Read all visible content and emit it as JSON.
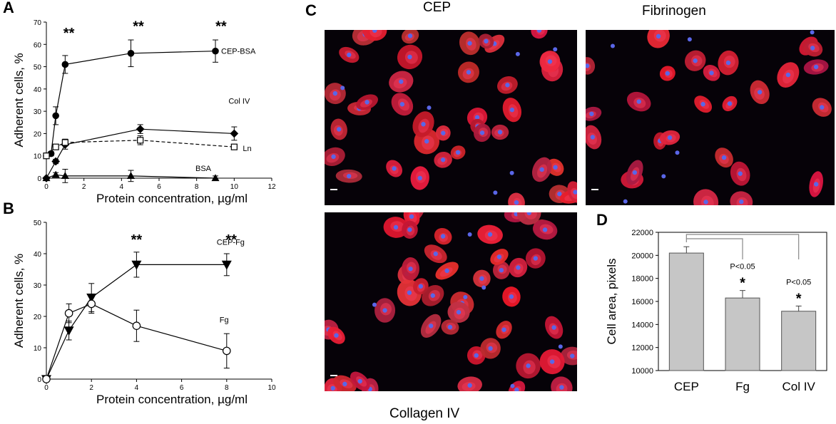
{
  "panels": {
    "a": "A",
    "b": "B",
    "c": "C",
    "d": "D"
  },
  "micrographs": {
    "cep": "CEP",
    "fibrinogen": "Fibrinogen",
    "collagen": "Collagen IV"
  },
  "colors": {
    "cell_red": "#e2242f",
    "nucleus_blue": "#5a66e8",
    "bar_fill": "#c6c6c6",
    "background_dark": "#060208"
  },
  "chart_data": [
    {
      "id": "A",
      "type": "line",
      "xlabel": "Protein concentration, µg/ml",
      "ylabel": "Adherent cells, %",
      "xlim": [
        0,
        12
      ],
      "ylim": [
        0,
        70
      ],
      "xticks": [
        "0",
        "2",
        "4",
        "6",
        "8",
        "10",
        "12"
      ],
      "yticks": [
        "0",
        "10",
        "20",
        "30",
        "40",
        "50",
        "60",
        "70"
      ],
      "series": [
        {
          "name": "CEP-BSA",
          "marker": "filled-circle",
          "dash": "solid",
          "x": [
            0,
            0.25,
            0.5,
            1,
            4.5,
            9
          ],
          "y": [
            10,
            11,
            28,
            51,
            56,
            57
          ],
          "err": [
            1,
            1,
            4,
            4,
            6,
            5
          ]
        },
        {
          "name": "Col IV",
          "marker": "filled-diamond",
          "dash": "solid",
          "x": [
            0,
            0.5,
            1,
            5,
            10
          ],
          "y": [
            0,
            7.5,
            15,
            22,
            20
          ],
          "err": [
            0,
            1,
            2,
            2,
            3
          ]
        },
        {
          "name": "Ln",
          "marker": "open-square",
          "dash": "dashed",
          "x": [
            0,
            0.5,
            1,
            5,
            10
          ],
          "y": [
            10,
            14,
            16,
            17,
            14
          ],
          "err": [
            0,
            1,
            1.5,
            2,
            1
          ]
        },
        {
          "name": "BSA",
          "marker": "filled-triangle",
          "dash": "solid",
          "x": [
            0,
            0.5,
            1,
            4.5,
            9
          ],
          "y": [
            0,
            1.5,
            1,
            1,
            0
          ],
          "err": [
            0,
            1,
            3,
            2.5,
            1
          ]
        }
      ],
      "annotations": [
        {
          "text": "**",
          "x": 1.2,
          "y": 63
        },
        {
          "text": "**",
          "x": 4.9,
          "y": 66
        },
        {
          "text": "**",
          "x": 9.3,
          "y": 66
        }
      ]
    },
    {
      "id": "B",
      "type": "line",
      "xlabel": "Protein concentration, µg/ml",
      "ylabel": "Adherent cells, %",
      "xlim": [
        0,
        10
      ],
      "ylim": [
        0,
        50
      ],
      "xticks": [
        "0",
        "2",
        "4",
        "6",
        "8",
        "10"
      ],
      "yticks": [
        "0",
        "10",
        "20",
        "30",
        "40",
        "50"
      ],
      "series": [
        {
          "name": "CEP-Fg",
          "marker": "filled-down-triangle",
          "dash": "solid",
          "x": [
            0,
            1,
            2,
            4,
            8
          ],
          "y": [
            0,
            15.5,
            26,
            36.5,
            36.5
          ],
          "err": [
            0,
            3,
            4.5,
            4,
            3.5
          ]
        },
        {
          "name": "Fg",
          "marker": "open-circle",
          "dash": "solid",
          "x": [
            0,
            1,
            2,
            4,
            8
          ],
          "y": [
            0,
            21,
            24,
            17,
            9
          ],
          "err": [
            0,
            3,
            3,
            5,
            5.5
          ]
        }
      ],
      "annotations": [
        {
          "text": "**",
          "x": 4,
          "y": 43
        },
        {
          "text": "**",
          "x": 8.2,
          "y": 43
        }
      ]
    },
    {
      "id": "D",
      "type": "bar",
      "ylabel": "Cell area, pixels",
      "categories": [
        "CEP",
        "Fg",
        "Col IV"
      ],
      "values": [
        20200,
        16300,
        15150
      ],
      "err": [
        550,
        650,
        450
      ],
      "ylim": [
        10000,
        22000
      ],
      "yticks": [
        "10000",
        "12000",
        "14000",
        "16000",
        "18000",
        "20000",
        "22000"
      ],
      "annotations": [
        {
          "text": "P<0.05",
          "category": 1
        },
        {
          "text": "*",
          "category": 1
        },
        {
          "text": "P<0.05",
          "category": 2
        },
        {
          "text": "*",
          "category": 2
        }
      ]
    }
  ]
}
